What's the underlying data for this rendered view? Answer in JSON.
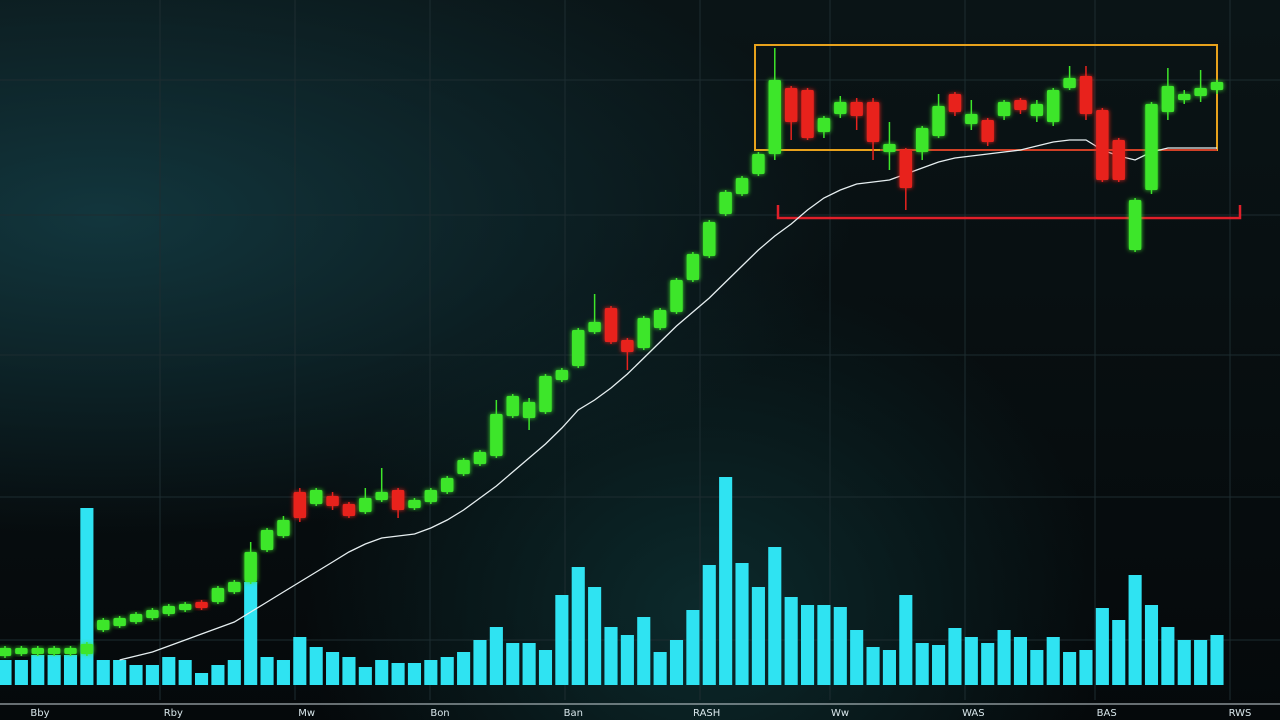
{
  "chart_data": {
    "type": "candlestick",
    "x_labels": [
      "Bby",
      "Rby",
      "Mw",
      "Bon",
      "Ban",
      "RASH",
      "Ww",
      "WAS",
      "BAS",
      "RWS"
    ],
    "ylim": [
      0,
      700
    ],
    "y2lim": [
      0,
      685
    ],
    "up_color": "#3ee62a",
    "down_color": "#e8231f",
    "open": [
      44,
      46,
      46,
      46,
      46,
      46,
      70,
      74,
      78,
      82,
      86,
      90,
      98,
      98,
      108,
      118,
      150,
      164,
      208,
      196,
      204,
      196,
      188,
      200,
      210,
      192,
      198,
      208,
      226,
      236,
      244,
      284,
      282,
      288,
      320,
      334,
      368,
      392,
      360,
      352,
      372,
      388,
      420,
      444,
      486,
      506,
      526,
      546,
      612,
      610,
      568,
      586,
      598,
      598,
      548,
      550,
      548,
      564,
      606,
      576,
      580,
      584,
      600,
      584,
      578,
      612,
      624,
      590,
      560,
      450,
      510,
      588,
      600,
      604,
      610
    ],
    "close": [
      52,
      52,
      52,
      52,
      52,
      56,
      80,
      82,
      86,
      90,
      94,
      96,
      92,
      112,
      118,
      148,
      170,
      180,
      182,
      210,
      194,
      184,
      202,
      208,
      190,
      200,
      210,
      222,
      240,
      248,
      286,
      304,
      298,
      324,
      330,
      370,
      378,
      358,
      348,
      382,
      390,
      420,
      446,
      478,
      508,
      522,
      546,
      620,
      578,
      562,
      582,
      598,
      584,
      558,
      556,
      512,
      572,
      594,
      588,
      586,
      558,
      598,
      590,
      596,
      610,
      622,
      586,
      520,
      520,
      500,
      596,
      614,
      606,
      612,
      618
    ],
    "high": [
      54,
      54,
      54,
      54,
      54,
      58,
      82,
      84,
      88,
      92,
      96,
      98,
      100,
      114,
      120,
      158,
      172,
      184,
      212,
      212,
      208,
      198,
      212,
      232,
      212,
      202,
      212,
      224,
      242,
      250,
      300,
      306,
      302,
      326,
      332,
      372,
      406,
      394,
      362,
      384,
      392,
      422,
      448,
      480,
      510,
      524,
      548,
      652,
      614,
      612,
      584,
      604,
      602,
      602,
      578,
      552,
      574,
      606,
      608,
      600,
      582,
      600,
      602,
      600,
      612,
      634,
      634,
      592,
      562,
      502,
      598,
      632,
      610,
      630,
      620
    ],
    "low": [
      42,
      44,
      44,
      44,
      44,
      44,
      68,
      72,
      76,
      80,
      84,
      88,
      90,
      96,
      106,
      116,
      148,
      162,
      178,
      194,
      190,
      182,
      186,
      198,
      182,
      190,
      196,
      206,
      224,
      234,
      242,
      282,
      270,
      286,
      318,
      332,
      366,
      356,
      330,
      350,
      370,
      386,
      418,
      442,
      484,
      504,
      524,
      540,
      560,
      560,
      562,
      582,
      570,
      540,
      530,
      490,
      540,
      562,
      584,
      570,
      554,
      580,
      586,
      578,
      574,
      610,
      580,
      518,
      518,
      448,
      506,
      580,
      596,
      598,
      606
    ],
    "ma": {
      "color": "#e6eef0",
      "values": [
        null,
        null,
        null,
        null,
        null,
        null,
        null,
        40,
        44,
        48,
        54,
        60,
        66,
        72,
        78,
        88,
        98,
        108,
        118,
        128,
        138,
        148,
        156,
        162,
        164,
        166,
        172,
        180,
        190,
        202,
        214,
        228,
        242,
        256,
        272,
        290,
        300,
        312,
        326,
        342,
        358,
        374,
        388,
        402,
        418,
        434,
        450,
        464,
        476,
        490,
        502,
        510,
        516,
        518,
        520,
        526,
        532,
        538,
        542,
        544,
        546,
        548,
        550,
        554,
        558,
        560,
        560,
        550,
        544,
        540,
        548,
        552,
        552,
        552,
        552
      ]
    },
    "volume": {
      "color": "#2fe3f2",
      "values": [
        25,
        25,
        30,
        30,
        30,
        177,
        25,
        25,
        20,
        20,
        28,
        25,
        12,
        20,
        25,
        103,
        28,
        25,
        48,
        38,
        33,
        28,
        18,
        25,
        22,
        22,
        25,
        28,
        33,
        45,
        58,
        42,
        42,
        35,
        90,
        118,
        98,
        58,
        50,
        68,
        33,
        45,
        75,
        120,
        208,
        122,
        98,
        138,
        88,
        80,
        80,
        78,
        55,
        38,
        35,
        90,
        42,
        40,
        57,
        48,
        42,
        55,
        48,
        35,
        48,
        33,
        35,
        77,
        65,
        110,
        80,
        58,
        45,
        45,
        50
      ]
    }
  }
}
